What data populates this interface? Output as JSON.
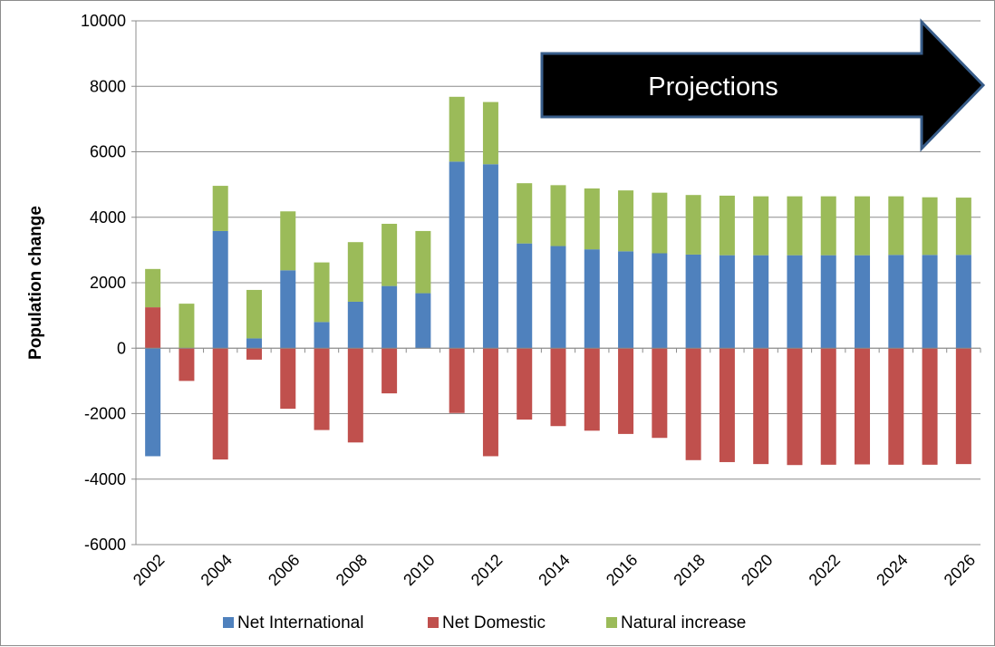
{
  "chart_data": {
    "type": "bar",
    "stacked": true,
    "title": "",
    "xlabel": "",
    "ylabel": "Population change",
    "ylim": [
      -6000,
      10000
    ],
    "yticks": [
      -6000,
      -4000,
      -2000,
      0,
      2000,
      4000,
      6000,
      8000,
      10000
    ],
    "grid": "horizontal",
    "legend_position": "bottom",
    "categories": [
      "2002",
      "2003",
      "2004",
      "2005",
      "2006",
      "2007",
      "2008",
      "2009",
      "2010",
      "2011",
      "2012",
      "2013",
      "2014",
      "2015",
      "2016",
      "2017",
      "2018",
      "2019",
      "2020",
      "2021",
      "2022",
      "2023",
      "2024",
      "2025",
      "2026"
    ],
    "tick_labels": [
      "2002",
      "2004",
      "2006",
      "2008",
      "2010",
      "2012",
      "2014",
      "2016",
      "2018",
      "2020",
      "2022",
      "2024",
      "2026"
    ],
    "series": [
      {
        "name": "Net International",
        "color": "#4f81bd",
        "values": [
          -3300,
          0,
          3580,
          300,
          2380,
          800,
          1420,
          1900,
          1680,
          5700,
          5620,
          3200,
          3120,
          3020,
          2960,
          2900,
          2860,
          2840,
          2840,
          2840,
          2840,
          2840,
          2850,
          2850,
          2850
        ]
      },
      {
        "name": "Net Domestic",
        "color": "#c0504d",
        "values": [
          1250,
          -1000,
          -3400,
          -350,
          -1850,
          -2500,
          -2880,
          -1380,
          0,
          -1980,
          -3300,
          -2180,
          -2380,
          -2520,
          -2620,
          -2740,
          -3420,
          -3480,
          -3540,
          -3570,
          -3560,
          -3550,
          -3560,
          -3560,
          -3540
        ]
      },
      {
        "name": "Natural increase",
        "color": "#9bbb59",
        "values": [
          1170,
          1360,
          1380,
          1480,
          1800,
          1820,
          1820,
          1900,
          1900,
          1980,
          1900,
          1840,
          1860,
          1860,
          1860,
          1850,
          1820,
          1820,
          1800,
          1800,
          1800,
          1800,
          1790,
          1760,
          1750
        ]
      }
    ],
    "annotations": [
      {
        "text": "Projections",
        "shape": "right-arrow",
        "fill": "#000000",
        "stroke": "#385d8a"
      }
    ]
  }
}
